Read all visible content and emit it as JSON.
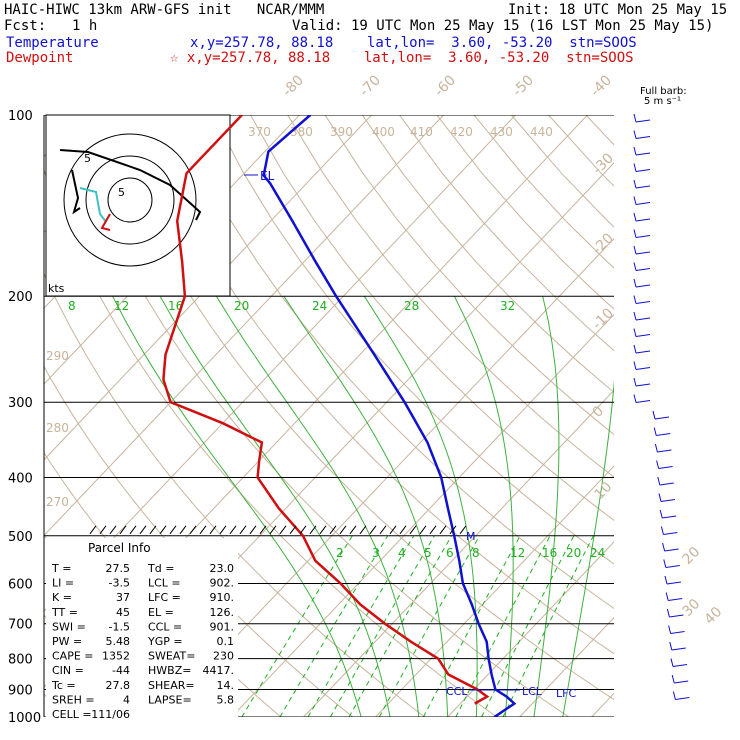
{
  "header": {
    "model_title": "HAIC-HIWC 13km ARW-GFS init   NCAR/MMM",
    "init": "Init: 18 UTC Mon 25 May 15",
    "fcst_label": "Fcst:",
    "fcst_value": "1 h",
    "valid": "Valid: 19 UTC Mon 25 May 15 (16 LST Mon 25 May 15)",
    "temperature_label": "Temperature",
    "temperature_loc": "x,y=257.78, 88.18    lat,lon=  3.60, -53.20  stn=SOOS",
    "dewpoint_label": "Dewpoint",
    "dewpoint_loc": "☆ x,y=257.78, 88.18    lat,lon=  3.60, -53.20  stn=SOOS"
  },
  "colors": {
    "temperature": "#1010d0",
    "dewpoint": "#d01010",
    "isotherm": "#c8b49c",
    "mixing_ratio": "#20b020",
    "moist_adiabat": "#40b040",
    "isobar": "#000000"
  },
  "wind_legend": {
    "line1": "Full barb:",
    "line2": "5 m s⁻¹"
  },
  "hodograph": {
    "units": "kts",
    "ring_labels": [
      "5",
      "5"
    ]
  },
  "parcel_info": {
    "title": "Parcel Info",
    "rows": [
      [
        "T  =",
        "27.5",
        "Td =",
        "23.0"
      ],
      [
        "LI =",
        "-3.5",
        "LCL =",
        "902."
      ],
      [
        "K  =",
        "37",
        "LFC =",
        "910."
      ],
      [
        "TT =",
        "45",
        "EL =",
        "126."
      ],
      [
        "SWI =",
        "-1.5",
        "CCL =",
        "901."
      ],
      [
        "PW =",
        "5.48",
        "YGP =",
        "0.1"
      ],
      [
        "CAPE =",
        "1352",
        "SWEAT=",
        "230"
      ],
      [
        "CIN =",
        "-44",
        "HWBZ=",
        "4417."
      ],
      [
        "Tc =",
        "27.8",
        "SHEAR=",
        "14."
      ],
      [
        "SREH =",
        "4",
        "LAPSE=",
        "5.8"
      ],
      [
        "CELL =",
        "111/06",
        "",
        ""
      ]
    ]
  },
  "chart_data": {
    "type": "line",
    "title": "Skew-T log-P sounding",
    "y_axis": {
      "label": "pressure (hPa)",
      "log_scale": true,
      "range": [
        1000,
        100
      ],
      "ticks": [
        "100",
        "200",
        "300",
        "400",
        "500",
        "600",
        "700",
        "800",
        "900",
        "1000"
      ]
    },
    "isotherm_labels": [
      "-80",
      "-70",
      "-60",
      "-50",
      "-40",
      "-30",
      "-20",
      "-10",
      "0",
      "10",
      "20",
      "30",
      "40"
    ],
    "theta_labels": [
      "370",
      "380",
      "390",
      "400",
      "410",
      "420",
      "430",
      "440",
      "290",
      "280",
      "270"
    ],
    "mixing_ratio_labels_upper": [
      "8",
      "12",
      "16",
      "20",
      "24",
      "28",
      "32"
    ],
    "mixing_ratio_labels_lower": [
      "2",
      "3",
      "4",
      "5",
      "6",
      "8",
      "12",
      "16",
      "20",
      "24"
    ],
    "series": [
      {
        "name": "Temperature",
        "points": [
          [
            1000,
            26.5
          ],
          [
            950,
            27.5
          ],
          [
            925,
            25.5
          ],
          [
            900,
            23.0
          ],
          [
            850,
            20.5
          ],
          [
            800,
            18.0
          ],
          [
            750,
            15.5
          ],
          [
            700,
            12.0
          ],
          [
            650,
            8.5
          ],
          [
            600,
            4.5
          ],
          [
            550,
            1.0
          ],
          [
            500,
            -3.0
          ],
          [
            450,
            -7.5
          ],
          [
            400,
            -12.5
          ],
          [
            350,
            -19.0
          ],
          [
            300,
            -27.5
          ],
          [
            250,
            -38.0
          ],
          [
            200,
            -51.0
          ],
          [
            175,
            -58.5
          ],
          [
            150,
            -67.0
          ],
          [
            130,
            -75.0
          ],
          [
            126,
            -77.0
          ],
          [
            115,
            -79.5
          ],
          [
            100,
            -78.5
          ]
        ]
      },
      {
        "name": "Dewpoint",
        "points": [
          [
            950,
            22.0
          ],
          [
            925,
            22.8
          ],
          [
            900,
            20.5
          ],
          [
            850,
            14.5
          ],
          [
            800,
            11.0
          ],
          [
            750,
            5.0
          ],
          [
            700,
            -1.0
          ],
          [
            650,
            -7.0
          ],
          [
            600,
            -12.5
          ],
          [
            550,
            -19.0
          ],
          [
            500,
            -24.0
          ],
          [
            450,
            -31.0
          ],
          [
            400,
            -38.0
          ],
          [
            375,
            -40.0
          ],
          [
            350,
            -42.0
          ],
          [
            325,
            -50.0
          ],
          [
            300,
            -60.0
          ],
          [
            275,
            -64.0
          ],
          [
            250,
            -67.0
          ],
          [
            200,
            -72.0
          ],
          [
            175,
            -77.0
          ],
          [
            150,
            -83.0
          ],
          [
            125,
            -88.0
          ],
          [
            100,
            -88.0
          ]
        ]
      }
    ],
    "annotations": [
      "EL",
      "CCL",
      "LCL",
      "LFC",
      "M"
    ]
  }
}
